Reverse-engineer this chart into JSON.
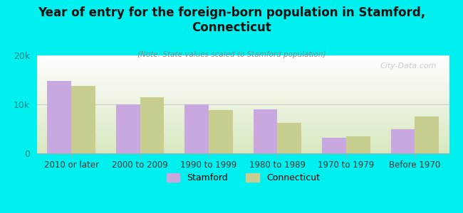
{
  "title": "Year of entry for the foreign-born population in Stamford,\nConnecticut",
  "subtitle": "(Note: State values scaled to Stamford population)",
  "categories": [
    "2010 or later",
    "2000 to 2009",
    "1990 to 1999",
    "1980 to 1989",
    "1970 to 1979",
    "Before 1970"
  ],
  "stamford_values": [
    14800,
    10000,
    10000,
    9000,
    3200,
    5000
  ],
  "connecticut_values": [
    13800,
    11500,
    8800,
    6200,
    3500,
    7500
  ],
  "stamford_color": "#C9A8E0",
  "connecticut_color": "#C8CE90",
  "background_outer": "#00EFEF",
  "background_inner_top": "#FFFFFF",
  "background_inner_bottom": "#D8E8C0",
  "ylim": [
    0,
    20000
  ],
  "yticks": [
    0,
    10000,
    20000
  ],
  "ytick_labels": [
    "0",
    "10k",
    "20k"
  ],
  "watermark": "City-Data.com",
  "legend_stamford": "Stamford",
  "legend_connecticut": "Connecticut",
  "bar_width": 0.35
}
